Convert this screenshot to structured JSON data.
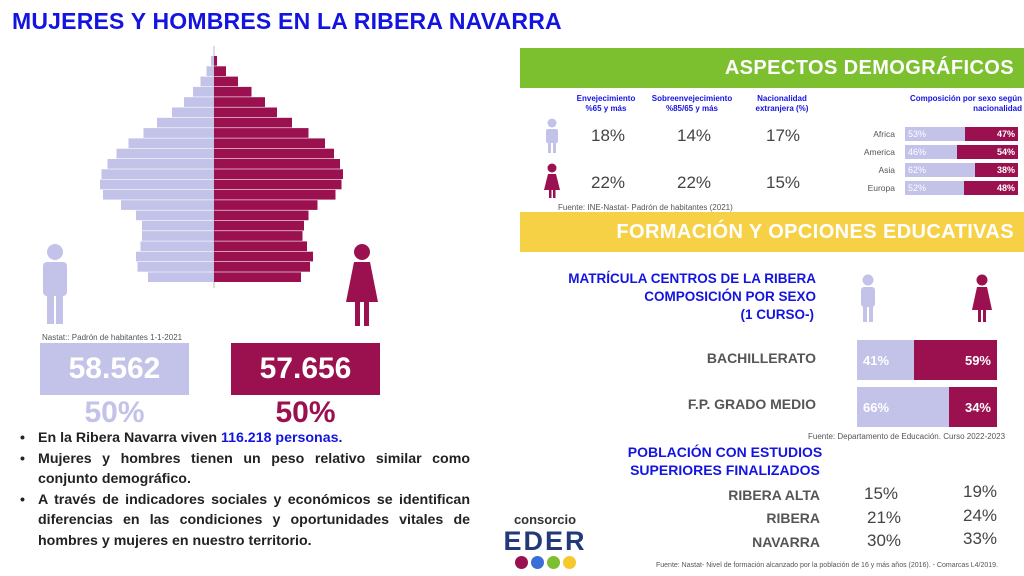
{
  "title": "MUJERES Y HOMBRES EN LA RIBERA NAVARRA",
  "colors": {
    "male": "#c3c2e9",
    "female": "#9b1150",
    "accent_blue": "#1414e0",
    "green": "#7cbf2f",
    "yellow": "#f7d145"
  },
  "pyramid": {
    "male_fraction": [
      0.02,
      0.05,
      0.09,
      0.14,
      0.2,
      0.28,
      0.38,
      0.47,
      0.57,
      0.65,
      0.71,
      0.75,
      0.76,
      0.74,
      0.62,
      0.52,
      0.48,
      0.48,
      0.49,
      0.52,
      0.51,
      0.44
    ],
    "female_fraction": [
      0.02,
      0.08,
      0.16,
      0.25,
      0.34,
      0.42,
      0.52,
      0.63,
      0.74,
      0.8,
      0.84,
      0.86,
      0.85,
      0.81,
      0.69,
      0.63,
      0.6,
      0.59,
      0.62,
      0.66,
      0.64,
      0.58
    ]
  },
  "left": {
    "source": "Nastat:: Padrón de habitantes 1-1-2021",
    "male_total": "58.562",
    "female_total": "57.656",
    "male_pct": "50%",
    "female_pct": "50%",
    "bullet1_pre": "En la Ribera Navarra viven ",
    "bullet1_hl": "116.218 personas.",
    "bullet2": "Mujeres y hombres tienen un peso relativo similar como conjunto demográfico.",
    "bullet3": "A través de indicadores sociales y económicos se identifican diferencias en las condiciones y oportunidades vitales de hombres y mujeres en nuestro territorio."
  },
  "demo": {
    "banner": "ASPECTOS DEMOGRÁFICOS",
    "col1": "Envejecimiento %65 y más",
    "col2": "Sobreenvejecimiento %85/65 y más",
    "col3": "Nacionalidad extranjera (%)",
    "col4": "Composición por sexo según nacionalidad",
    "male_vals": [
      "18%",
      "14%",
      "17%"
    ],
    "female_vals": [
      "22%",
      "22%",
      "15%"
    ],
    "source": "Fuente: INE-Nastat- Padrón de habitantes (2021)",
    "nationality": [
      {
        "region": "Africa",
        "male": "53%",
        "female": "47%",
        "male_frac": 0.53
      },
      {
        "region": "America",
        "male": "46%",
        "female": "54%",
        "male_frac": 0.46
      },
      {
        "region": "Asia",
        "male": "62%",
        "female": "38%",
        "male_frac": 0.62
      },
      {
        "region": "Europa",
        "male": "52%",
        "female": "48%",
        "male_frac": 0.52
      }
    ]
  },
  "edu": {
    "banner": "FORMACIÓN Y OPCIONES EDUCATIVAS",
    "head1": "MATRÍCULA  CENTROS DE LA RIBERA",
    "head2": "COMPOSICIÓN POR SEXO",
    "head3": "(1 CURSO-)",
    "rows": [
      {
        "label": "BACHILLERATO",
        "male": "41%",
        "female": "59%",
        "male_frac": 0.41
      },
      {
        "label": "F.P. GRADO MEDIO",
        "male": "66%",
        "female": "34%",
        "male_frac": 0.66
      }
    ],
    "source": "Fuente: Departamento de Educación. Curso 2022-2023",
    "sup_head1": "POBLACIÓN CON ESTUDIOS",
    "sup_head2": "SUPERIORES FINALIZADOS",
    "sup_rows": [
      {
        "label": "RIBERA ALTA",
        "male": "15%",
        "female": "19%"
      },
      {
        "label": "RIBERA",
        "male": "21%",
        "female": "24%"
      },
      {
        "label": "NAVARRA",
        "male": "30%",
        "female": "33%"
      }
    ],
    "sup_source": "Fuente: Nastat- Nivel de formación alcanzado por la población de 16 y más años  (2016). -  Comarcas L4/2019."
  },
  "logo": {
    "top": "consorcio",
    "big": "EDER"
  }
}
